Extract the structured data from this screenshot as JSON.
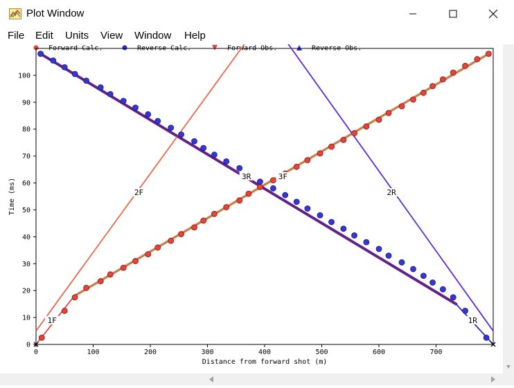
{
  "window": {
    "title": "Plot Window"
  },
  "menu": [
    "File",
    "Edit",
    "Units",
    "View",
    "Window",
    "Help"
  ],
  "legend": [
    {
      "label": "Forward Calc.",
      "color": "#e8433a",
      "marker": "circle"
    },
    {
      "label": "Reverse Calc.",
      "color": "#2b2bd6",
      "marker": "circle"
    },
    {
      "label": "Forward Obs.",
      "color": "#e8433a",
      "marker": "triangle-down"
    },
    {
      "label": "Reverse Obs.",
      "color": "#2b2bd6",
      "marker": "triangle-up"
    }
  ],
  "chart_data": {
    "type": "line",
    "xlabel": "Distance from forward shot (m)",
    "ylabel": "Time (ms)",
    "xlim": [
      0,
      800
    ],
    "ylim": [
      0,
      110
    ],
    "xticks": [
      0,
      100,
      200,
      300,
      400,
      500,
      600,
      700
    ],
    "yticks": [
      0,
      10,
      20,
      30,
      40,
      50,
      60,
      70,
      80,
      90,
      100
    ],
    "line_labels": [
      "1F",
      "2F",
      "3F",
      "1R",
      "2R",
      "3R"
    ],
    "layers": {
      "forward": [
        {
          "label": "1F",
          "color": "#e8433a",
          "x": [
            0,
            67
          ],
          "y": [
            0,
            18
          ]
        },
        {
          "label": "2F",
          "color": "#e8674a",
          "x": [
            0,
            366
          ],
          "y": [
            5,
            112
          ]
        },
        {
          "label": "3F",
          "color": "#c07040",
          "x": [
            67,
            792
          ],
          "y": [
            18,
            108
          ]
        }
      ],
      "reverse": [
        {
          "label": "1R",
          "color": "#2b2bd6",
          "x": [
            735,
            800
          ],
          "y": [
            15,
            0
          ]
        },
        {
          "label": "2R",
          "color": "#5a2bd6",
          "x": [
            440,
            800
          ],
          "y": [
            112,
            5
          ]
        },
        {
          "label": "3R",
          "color": "#6a1a8a",
          "x": [
            8,
            735
          ],
          "y": [
            108,
            15
          ]
        }
      ]
    },
    "series": [
      {
        "name": "Forward Calc.",
        "color": "#e8433a",
        "x": [
          10,
          50,
          68,
          88,
          113,
          130,
          153,
          174,
          196,
          213,
          236,
          254,
          277,
          293,
          312,
          333,
          356,
          372,
          392,
          415,
          436,
          456,
          475,
          497,
          517,
          538,
          557,
          578,
          600,
          617,
          640,
          660,
          678,
          694,
          712,
          730,
          751,
          772,
          792
        ],
        "y": [
          2.5,
          12.5,
          17.5,
          21,
          23.5,
          26,
          28.5,
          31,
          33.5,
          36,
          38.5,
          41,
          43.5,
          46,
          48.5,
          51,
          53.5,
          56,
          58.5,
          61,
          63.5,
          66,
          68.5,
          71,
          73.5,
          76,
          78.5,
          81,
          83.5,
          86,
          88.5,
          91,
          93.5,
          96,
          98.5,
          101,
          103.5,
          106,
          108
        ]
      },
      {
        "name": "Reverse Calc.",
        "color": "#2b2bd6",
        "x": [
          8,
          30,
          50,
          68,
          88,
          113,
          130,
          153,
          174,
          196,
          213,
          236,
          254,
          277,
          293,
          312,
          333,
          356,
          372,
          392,
          415,
          436,
          456,
          475,
          497,
          517,
          538,
          557,
          578,
          600,
          617,
          640,
          660,
          678,
          694,
          712,
          730,
          751,
          788
        ],
        "y": [
          108,
          105.5,
          103,
          100.5,
          98,
          95.5,
          93,
          90.5,
          88,
          85.5,
          83,
          80.5,
          78,
          75.5,
          73,
          70.5,
          68,
          65.5,
          63,
          60.5,
          58,
          55.5,
          53,
          50.5,
          48,
          45.5,
          43,
          40.5,
          38,
          35.5,
          33,
          30.5,
          28,
          25.5,
          23,
          20.5,
          17.5,
          12.5,
          2.5
        ]
      }
    ]
  }
}
